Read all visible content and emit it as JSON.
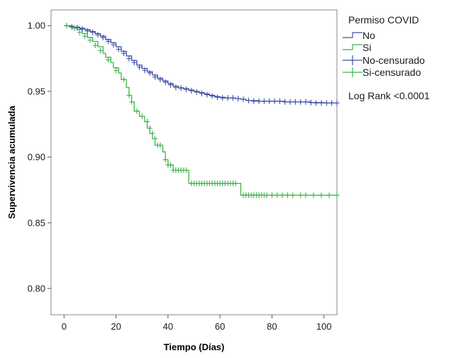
{
  "chart_data": {
    "type": "line",
    "subtype": "kaplan-meier-step",
    "title": "",
    "xlabel": "Tiempo (Días)",
    "ylabel": "Supervivencia acumulada",
    "xlim": [
      -5,
      105
    ],
    "ylim": [
      0.78,
      1.012
    ],
    "xticks": [
      0,
      20,
      40,
      60,
      80,
      100
    ],
    "xtick_labels": [
      "0",
      "20",
      "40",
      "60",
      "80",
      "100"
    ],
    "yticks": [
      0.8,
      0.85,
      0.9,
      0.95,
      1.0
    ],
    "ytick_labels": [
      "0.80",
      "0.85",
      "0.90",
      "0.95",
      "1.00"
    ],
    "grid": false,
    "legend": {
      "title": "Permiso COVID",
      "position": "right",
      "entries": [
        "No",
        "Si",
        "No-censurado",
        "Si-censurado"
      ],
      "note": "Log Rank <0.0001"
    },
    "series": [
      {
        "name": "No",
        "color": "#3f4fa6",
        "x": [
          0,
          2,
          4,
          6,
          8,
          10,
          12,
          14,
          16,
          18,
          20,
          22,
          24,
          26,
          28,
          30,
          32,
          34,
          36,
          38,
          40,
          42,
          44,
          46,
          48,
          50,
          52,
          54,
          56,
          58,
          60,
          62,
          64,
          66,
          68,
          70,
          75,
          80,
          85,
          90,
          95,
          100,
          105
        ],
        "values": [
          1.0,
          0.9995,
          0.999,
          0.998,
          0.997,
          0.9955,
          0.994,
          0.992,
          0.9895,
          0.987,
          0.984,
          0.9805,
          0.977,
          0.9735,
          0.97,
          0.9675,
          0.965,
          0.9625,
          0.96,
          0.958,
          0.956,
          0.954,
          0.9527,
          0.952,
          0.951,
          0.95,
          0.949,
          0.948,
          0.947,
          0.946,
          0.9455,
          0.945,
          0.945,
          0.9445,
          0.944,
          0.943,
          0.9425,
          0.9425,
          0.942,
          0.942,
          0.9415,
          0.9412,
          0.9412
        ]
      },
      {
        "name": "Si",
        "color": "#3cb44b",
        "x": [
          0,
          3,
          5,
          7,
          9,
          11,
          13,
          15,
          16,
          18,
          19,
          21,
          22,
          24,
          25,
          26,
          27,
          29,
          31,
          32,
          33,
          34,
          35,
          38,
          39,
          40,
          42,
          48,
          55,
          60,
          68,
          75,
          85,
          95,
          105
        ],
        "values": [
          1.0,
          0.999,
          0.997,
          0.994,
          0.991,
          0.988,
          0.984,
          0.979,
          0.976,
          0.972,
          0.968,
          0.964,
          0.959,
          0.953,
          0.947,
          0.942,
          0.935,
          0.931,
          0.927,
          0.922,
          0.918,
          0.914,
          0.909,
          0.904,
          0.898,
          0.894,
          0.89,
          0.88,
          0.88,
          0.88,
          0.871,
          0.871,
          0.871,
          0.871,
          0.871
        ]
      }
    ],
    "censored": [
      {
        "name": "No-censurado",
        "color": "#3f4fa6",
        "x": [
          1,
          3,
          5,
          7,
          9,
          11,
          13,
          15,
          17,
          19,
          21,
          23,
          25,
          27,
          29,
          31,
          33,
          35,
          37,
          39,
          41,
          43,
          45,
          47,
          49,
          51,
          53,
          55,
          57,
          59,
          61,
          63,
          65,
          67,
          69,
          71,
          73,
          75,
          77,
          79,
          81,
          83,
          85,
          87,
          89,
          91,
          93,
          95,
          97,
          99,
          101,
          103,
          105
        ],
        "values": [
          1.0,
          0.999,
          0.9985,
          0.9975,
          0.996,
          0.995,
          0.993,
          0.991,
          0.988,
          0.9855,
          0.982,
          0.979,
          0.975,
          0.972,
          0.9685,
          0.966,
          0.964,
          0.961,
          0.959,
          0.957,
          0.955,
          0.953,
          0.9525,
          0.9515,
          0.9505,
          0.9495,
          0.9485,
          0.9475,
          0.9465,
          0.9455,
          0.945,
          0.945,
          0.945,
          0.9445,
          0.944,
          0.943,
          0.9425,
          0.9425,
          0.9425,
          0.9425,
          0.9425,
          0.9425,
          0.942,
          0.942,
          0.942,
          0.942,
          0.942,
          0.9415,
          0.9412,
          0.9412,
          0.9412,
          0.9412,
          0.9412
        ]
      },
      {
        "name": "Si-censurado",
        "color": "#3cb44b",
        "x": [
          1,
          4,
          6,
          8,
          10,
          12,
          14,
          17,
          20,
          23,
          25,
          26,
          28,
          30,
          32,
          33,
          34,
          35,
          36,
          37,
          39,
          40,
          41,
          42,
          43,
          44,
          45,
          46,
          47,
          49,
          50,
          51,
          52,
          53,
          54,
          55,
          56,
          57,
          58,
          59,
          60,
          61,
          62,
          63,
          64,
          65,
          66,
          69,
          70,
          71,
          72,
          73,
          74,
          75,
          76,
          77,
          78,
          80,
          82,
          84,
          86,
          88,
          91,
          93,
          96,
          99,
          102,
          105
        ],
        "values": [
          1.0,
          0.998,
          0.995,
          0.992,
          0.989,
          0.985,
          0.981,
          0.974,
          0.966,
          0.959,
          0.947,
          0.942,
          0.935,
          0.931,
          0.927,
          0.922,
          0.918,
          0.914,
          0.909,
          0.909,
          0.898,
          0.894,
          0.894,
          0.89,
          0.89,
          0.89,
          0.89,
          0.89,
          0.89,
          0.88,
          0.88,
          0.88,
          0.88,
          0.88,
          0.88,
          0.88,
          0.88,
          0.88,
          0.88,
          0.88,
          0.88,
          0.88,
          0.88,
          0.88,
          0.88,
          0.88,
          0.88,
          0.871,
          0.871,
          0.871,
          0.871,
          0.871,
          0.871,
          0.871,
          0.871,
          0.871,
          0.871,
          0.871,
          0.871,
          0.871,
          0.871,
          0.871,
          0.871,
          0.871,
          0.871,
          0.871,
          0.871,
          0.871
        ]
      }
    ]
  }
}
